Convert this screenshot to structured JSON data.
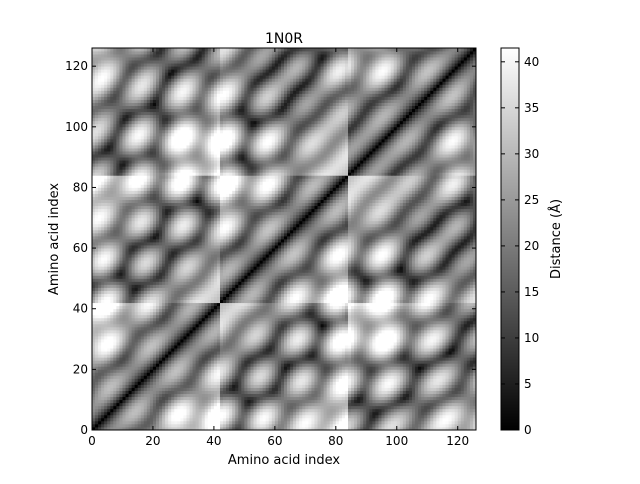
{
  "chart_data": {
    "type": "heatmap",
    "title": "1N0R",
    "xlabel": "Amino acid index",
    "ylabel": "Amino acid index",
    "n_residues": 126,
    "xlim": [
      0,
      126
    ],
    "ylim": [
      0,
      126
    ],
    "x_ticks": [
      0,
      20,
      40,
      60,
      80,
      100,
      120
    ],
    "y_ticks": [
      0,
      20,
      40,
      60,
      80,
      100,
      120
    ],
    "colormap": "gray",
    "colorbar": {
      "label": "Distance (Å)",
      "range": [
        0,
        41.5
      ],
      "ticks": [
        0,
        5,
        10,
        15,
        20,
        25,
        30,
        35,
        40
      ]
    },
    "diagonal_value": 0,
    "description_values": {
      "approx_max_distance": 41.5
    }
  }
}
